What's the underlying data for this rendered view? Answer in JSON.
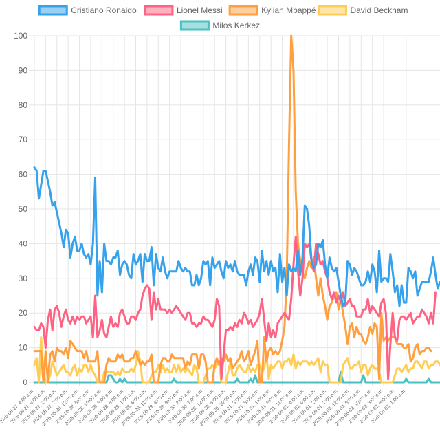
{
  "chart_data": {
    "type": "line",
    "title": "",
    "xlabel": "",
    "ylabel": "",
    "ylim": [
      0,
      100
    ],
    "yticks": [
      0,
      10,
      20,
      30,
      40,
      50,
      60,
      70,
      80,
      90,
      100
    ],
    "grid": true,
    "legend_position": "top",
    "x_tick_labels": [
      "2025-05-27, 4:00 a.m.",
      "2025-05-27, 9:00 a.m.",
      "2025-05-27, 2:00 p.m.",
      "2025-05-27, 7:00 p.m.",
      "2025-05-28, 12:00 a.m.",
      "2025-05-28, 5:00 a.m.",
      "2025-05-28, 10:00 a.m.",
      "2025-05-28, 3:00 p.m.",
      "2025-05-28, 8:00 p.m.",
      "2025-05-29, 1:00 a.m.",
      "2025-05-29, 6:00 a.m.",
      "2025-05-29, 11:00 a.m.",
      "2025-05-29, 4:00 p.m.",
      "2025-05-29, 9:00 p.m.",
      "2025-05-30, 2:00 a.m.",
      "2025-05-30, 7:00 a.m.",
      "2025-05-30, 12:00 p.m.",
      "2025-05-30, 5:00 p.m.",
      "2025-05-30, 10:00 p.m.",
      "2025-05-31, 3:00 a.m.",
      "2025-05-31, 8:00 a.m.",
      "2025-05-31, 1:00 p.m.",
      "2025-05-31, 6:00 p.m.",
      "2025-05-31, 11:00 p.m.",
      "2025-06-01, 4:00 a.m.",
      "2025-06-01, 9:00 a.m.",
      "2025-06-01, 2:00 p.m.",
      "2025-06-01, 7:00 p.m.",
      "2025-06-02, 12:00 a.m.",
      "2025-06-02, 5:00 a.m.",
      "2025-06-02, 10:00 a.m.",
      "2025-06-02, 3:00 p.m.",
      "2025-06-02, 8:00 p.m.",
      "2025-06-03, 1:00 a.m."
    ],
    "x_first": "2025-05-27, 4:00 a.m.",
    "x_last": "2025-06-03, 6:00 a.m.",
    "series": [
      {
        "name": "Cristiano Ronaldo",
        "color": "#36a2eb",
        "fill": "#9ad0f5",
        "values": [
          62,
          61,
          53,
          57,
          61,
          61,
          58,
          55,
          51,
          52,
          49,
          46,
          43,
          39,
          44,
          43,
          36,
          40,
          42,
          38,
          38,
          40,
          37,
          36,
          37,
          34,
          40,
          59,
          25,
          35,
          26,
          40,
          35,
          35,
          34,
          36,
          36,
          38,
          31,
          34,
          35,
          34,
          31,
          30,
          37,
          34,
          35,
          37,
          29,
          37,
          35,
          35,
          39,
          28,
          37,
          33,
          32,
          36,
          32,
          30,
          32,
          32,
          32,
          32,
          35,
          33,
          32,
          33,
          32,
          32,
          28,
          28,
          31,
          28,
          30,
          35,
          34,
          35,
          28,
          36,
          33,
          34,
          35,
          32,
          30,
          35,
          33,
          34,
          32,
          35,
          32,
          31,
          31,
          31,
          28,
          32,
          34,
          31,
          36,
          35,
          29,
          38,
          32,
          35,
          31,
          35,
          32,
          33,
          26,
          37,
          29,
          33,
          25,
          34,
          32,
          33,
          32,
          38,
          31,
          36,
          51,
          50,
          45,
          35,
          33,
          34,
          40,
          39,
          41,
          34,
          30,
          36,
          33,
          32,
          33,
          29,
          25,
          22,
          23,
          35,
          34,
          31,
          33,
          32,
          30,
          28,
          28,
          29,
          32,
          29,
          34,
          32,
          26,
          38,
          29,
          30,
          30,
          29,
          37,
          32,
          26,
          28,
          22,
          28,
          23,
          23,
          33,
          32,
          30,
          32,
          25,
          27,
          29,
          29,
          29,
          29,
          32,
          36,
          31,
          27,
          29
        ]
      },
      {
        "name": "Lionel Messi",
        "color": "#ff6384",
        "fill": "#ffb1c1",
        "values": [
          16,
          15,
          15,
          17,
          16,
          10,
          18,
          21,
          15,
          21,
          22,
          20,
          16,
          19,
          21,
          18,
          17,
          19,
          17,
          19,
          18,
          19,
          19,
          17,
          18,
          19,
          13,
          25,
          13,
          15,
          18,
          14,
          13,
          16,
          19,
          16,
          17,
          16,
          20,
          21,
          19,
          17,
          17,
          19,
          19,
          18,
          20,
          21,
          25,
          27,
          28,
          27,
          18,
          26,
          21,
          24,
          21,
          21,
          21,
          20,
          21,
          20,
          21,
          22,
          21,
          20,
          19,
          18,
          20,
          20,
          17,
          17,
          16,
          17,
          17,
          19,
          18,
          18,
          17,
          16,
          18,
          24,
          22,
          1,
          8,
          15,
          15,
          16,
          15,
          17,
          16,
          18,
          17,
          20,
          19,
          17,
          18,
          16,
          17,
          18,
          20,
          24,
          18,
          12,
          17,
          13,
          15,
          13,
          17,
          18,
          19,
          20,
          19,
          18,
          24,
          34,
          42,
          32,
          25,
          30,
          40,
          39,
          40,
          35,
          32,
          40,
          37,
          34,
          35,
          32,
          30,
          26,
          24,
          26,
          23,
          25,
          23,
          26,
          22,
          23,
          24,
          22,
          22,
          19,
          19,
          19,
          21,
          21,
          24,
          20,
          22,
          21,
          20,
          19,
          23,
          24,
          20,
          1,
          11,
          20,
          13,
          12,
          18,
          19,
          19,
          18,
          19,
          20,
          17,
          18,
          19,
          19,
          21,
          20,
          19,
          17,
          20,
          17,
          26
        ]
      },
      {
        "name": "Kylian Mbappé",
        "color": "#ff9f40",
        "fill": "#ffcf9f",
        "values": [
          9,
          9,
          9,
          9,
          0,
          9,
          0,
          8,
          9,
          6,
          10,
          9,
          9,
          8,
          10,
          7,
          12,
          11,
          10,
          9,
          9,
          9,
          7,
          9,
          6,
          6,
          6,
          6,
          9,
          0,
          0,
          0,
          5,
          7,
          6,
          6,
          6,
          8,
          7,
          8,
          6,
          6,
          6,
          7,
          7,
          9,
          7,
          5,
          6,
          5,
          6,
          6,
          8,
          0,
          0,
          0,
          5,
          7,
          7,
          6,
          6,
          8,
          7,
          7,
          7,
          7,
          7,
          4,
          6,
          5,
          8,
          8,
          8,
          4,
          8,
          8,
          6,
          0,
          0,
          0,
          5,
          7,
          5,
          7,
          6,
          8,
          6,
          7,
          4,
          5,
          6,
          7,
          9,
          6,
          7,
          9,
          5,
          7,
          9,
          12,
          0,
          0,
          13,
          6,
          9,
          10,
          8,
          9,
          8,
          9,
          12,
          16,
          30,
          68,
          100,
          90,
          55,
          40,
          35,
          32,
          30,
          33,
          35,
          33,
          36,
          30,
          25,
          30,
          25,
          22,
          18,
          22,
          23,
          25,
          26,
          21,
          24,
          20,
          16,
          11,
          16,
          17,
          13,
          16,
          14,
          14,
          12,
          11,
          13,
          16,
          14,
          17,
          16,
          1,
          20,
          12,
          13,
          12,
          13,
          13,
          13,
          11,
          11,
          11,
          10,
          10,
          11,
          6,
          7,
          10,
          11,
          8,
          9,
          9,
          10,
          10,
          9
        ]
      },
      {
        "name": "David Beckham",
        "color": "#ffcd56",
        "fill": "#ffe6aa",
        "values": [
          5,
          7,
          0,
          13,
          3,
          0,
          0,
          2,
          6,
          4,
          2,
          3,
          4,
          5,
          3,
          3,
          2,
          4,
          5,
          2,
          4,
          3,
          5,
          5,
          3,
          5,
          3,
          2,
          0,
          0,
          0,
          3,
          3,
          3,
          3,
          3,
          2,
          3,
          2,
          4,
          3,
          3,
          3,
          4,
          3,
          5,
          9,
          6,
          0,
          0,
          0,
          0,
          2,
          3,
          3,
          5,
          3,
          5,
          3,
          4,
          3,
          3,
          5,
          3,
          5,
          3,
          4,
          3,
          4,
          3,
          2,
          5,
          4,
          0,
          0,
          0,
          2,
          4,
          4,
          5,
          4,
          5,
          6,
          0,
          0,
          0,
          3,
          6,
          2,
          2,
          4,
          5,
          4,
          3,
          3,
          5,
          3,
          4,
          3,
          5,
          5,
          3,
          4,
          8,
          1,
          5,
          4,
          5,
          6,
          6,
          4,
          6,
          6,
          7,
          5,
          8,
          4,
          6,
          5,
          6,
          6,
          6,
          5,
          6,
          5,
          6,
          7,
          3,
          6,
          5,
          5,
          0,
          0,
          0,
          0,
          0,
          0,
          5,
          6,
          7,
          4,
          4,
          5,
          5,
          6,
          3,
          5,
          5,
          2,
          4,
          5,
          4,
          4,
          3,
          0,
          0,
          0,
          0,
          0,
          0,
          2,
          4,
          4,
          3,
          4,
          5,
          3,
          4,
          4,
          6,
          6,
          5,
          4,
          6,
          6,
          4,
          5,
          5,
          6,
          6,
          5,
          4
        ]
      },
      {
        "name": "Milos Kerkez",
        "color": "#4bc0c0",
        "fill": "#a5dfdf",
        "values": [
          0,
          0,
          0,
          0,
          0,
          0,
          0,
          0,
          0,
          0,
          0,
          0,
          0,
          0,
          0,
          0,
          0,
          0,
          0,
          0,
          0,
          0,
          0,
          0,
          0,
          0,
          0,
          0,
          0,
          0,
          0,
          0,
          0,
          2,
          2,
          1,
          0,
          0,
          1,
          0,
          1,
          0,
          0,
          0,
          0,
          0,
          0,
          0,
          0,
          0,
          0,
          0,
          0,
          0,
          0,
          0,
          0,
          0,
          0,
          0,
          0,
          0,
          1,
          0,
          0,
          0,
          0,
          0,
          0,
          0,
          0,
          0,
          0,
          0,
          0,
          0,
          0,
          0,
          0,
          0,
          0,
          0,
          0,
          0,
          0,
          0,
          0,
          0,
          0,
          0,
          1,
          0,
          0,
          0,
          0,
          0,
          1,
          0,
          2,
          0,
          0,
          0,
          0,
          0,
          0,
          0,
          0,
          0,
          0,
          0,
          0,
          0,
          0,
          0,
          0,
          0,
          0,
          0,
          0,
          0,
          0,
          0,
          0,
          0,
          0,
          0,
          0,
          0,
          0,
          0,
          0,
          0,
          0,
          0,
          0,
          0,
          3,
          0,
          0,
          0,
          0,
          0,
          0,
          0,
          0,
          0,
          2,
          0,
          0,
          0,
          0,
          0,
          0,
          0,
          0,
          0,
          0,
          0,
          0,
          0,
          0,
          0,
          0,
          0,
          0,
          1,
          0,
          0,
          0,
          0,
          0,
          0,
          0,
          0,
          0,
          1,
          0,
          0,
          0,
          0,
          0,
          0
        ]
      }
    ]
  }
}
